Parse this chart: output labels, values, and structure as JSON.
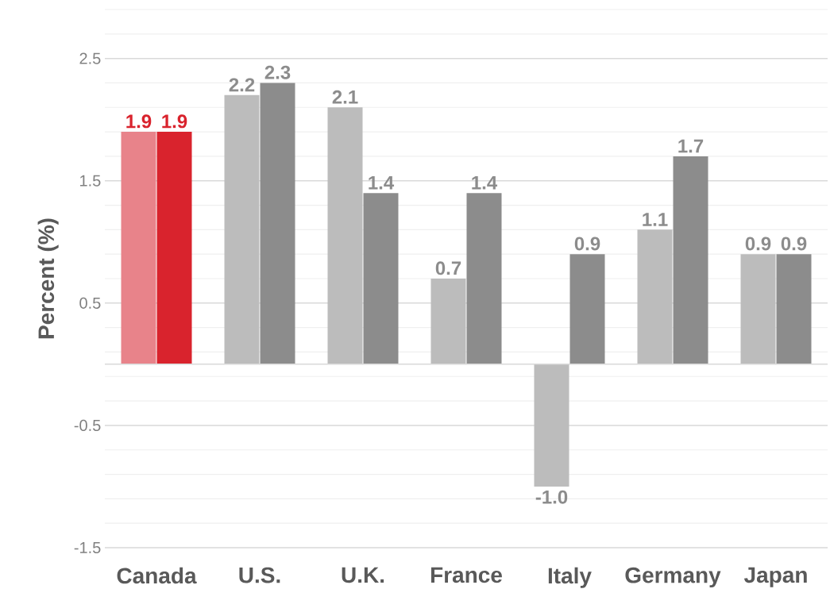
{
  "chart_data": {
    "type": "bar",
    "ylabel": "Percent (%)",
    "categories": [
      "Canada",
      "U.S.",
      "U.K.",
      "France",
      "Italy",
      "Germany",
      "Japan"
    ],
    "series": [
      {
        "values": [
          1.9,
          2.2,
          2.1,
          0.7,
          -1.0,
          1.1,
          0.9
        ],
        "value_labels": [
          "1.9",
          "2.2",
          "2.1",
          "0.7",
          "-1.0",
          "1.1",
          "0.9"
        ],
        "colors": [
          "#e8838a",
          "#bcbcbc",
          "#bcbcbc",
          "#bcbcbc",
          "#bcbcbc",
          "#bcbcbc",
          "#bcbcbc"
        ]
      },
      {
        "values": [
          1.9,
          2.3,
          1.4,
          1.4,
          0.9,
          1.7,
          0.9
        ],
        "value_labels": [
          "1.9",
          "2.3",
          "1.4",
          "1.4",
          "0.9",
          "1.7",
          "0.9"
        ],
        "colors": [
          "#d9232d",
          "#8c8c8c",
          "#8c8c8c",
          "#8c8c8c",
          "#8c8c8c",
          "#8c8c8c",
          "#8c8c8c"
        ]
      }
    ],
    "ylim": [
      -1.5,
      2.9
    ],
    "yticks": [
      {
        "value": -1.5,
        "label": "-1.5"
      },
      {
        "value": -1.3,
        "label": null
      },
      {
        "value": -1.1,
        "label": null
      },
      {
        "value": -0.9,
        "label": null
      },
      {
        "value": -0.7,
        "label": null
      },
      {
        "value": -0.5,
        "label": "-0.5"
      },
      {
        "value": -0.3,
        "label": null
      },
      {
        "value": -0.1,
        "label": null
      },
      {
        "value": 0.1,
        "label": null
      },
      {
        "value": 0.3,
        "label": null
      },
      {
        "value": 0.5,
        "label": "0.5"
      },
      {
        "value": 0.7,
        "label": null
      },
      {
        "value": 0.9,
        "label": null
      },
      {
        "value": 1.1,
        "label": null
      },
      {
        "value": 1.3,
        "label": null
      },
      {
        "value": 1.5,
        "label": "1.5"
      },
      {
        "value": 1.7,
        "label": null
      },
      {
        "value": 1.9,
        "label": null
      },
      {
        "value": 2.1,
        "label": null
      },
      {
        "value": 2.3,
        "label": null
      },
      {
        "value": 2.5,
        "label": "2.5"
      },
      {
        "value": 2.7,
        "label": null
      },
      {
        "value": 2.9,
        "label": null
      }
    ],
    "grid": "y"
  }
}
